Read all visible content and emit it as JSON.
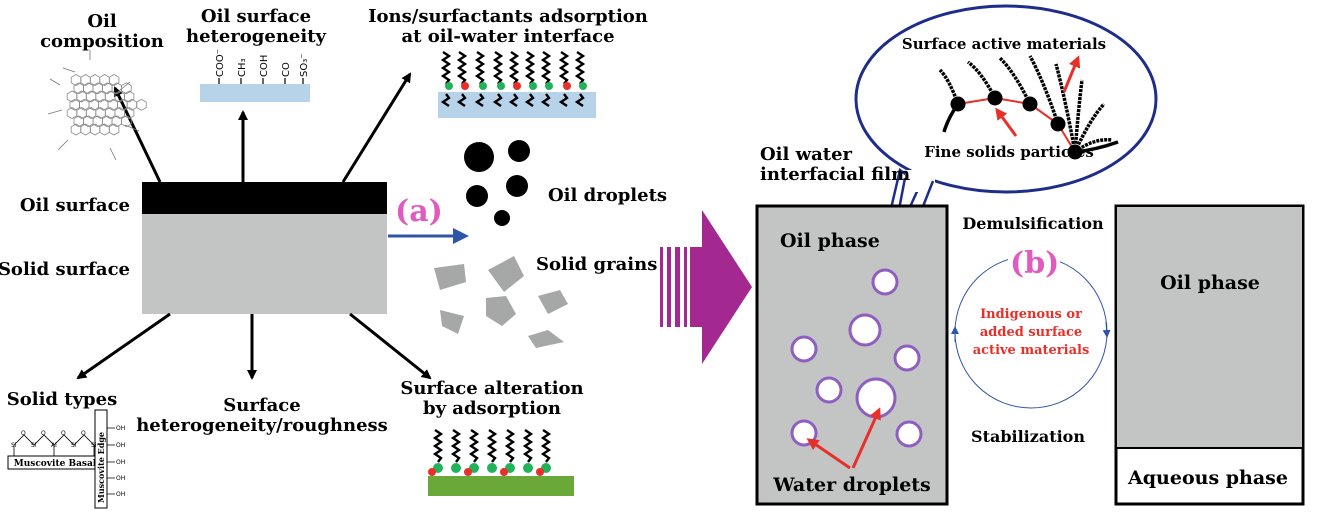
{
  "panel_a": {
    "label": "(a)",
    "oil_composition": [
      "Oil",
      "composition"
    ],
    "oil_surface_heterogeneity": [
      "Oil surface",
      "heterogeneity"
    ],
    "functional_groups": [
      "COO⁻",
      "CH₃",
      "COH",
      "CO",
      "SO₃⁻"
    ],
    "ions_adsorption": [
      "Ions/surfactants adsorption",
      "at oil-water interface"
    ],
    "oil_surface": "Oil surface",
    "solid_surface": "Solid surface",
    "oil_droplets": "Oil droplets",
    "solid_grains": "Solid grains",
    "solid_types": "Solid types",
    "surface_heterogeneity": [
      "Surface",
      "heterogeneity/roughness"
    ],
    "surface_alteration": [
      "Surface alteration",
      "by adsorption"
    ],
    "muscovite_basal": "Muscovite Basal",
    "muscovite_edge": "Muscovite Edge",
    "mineral_atoms": {
      "si": "Si",
      "al": "Al",
      "o": "O",
      "oh": "OH"
    }
  },
  "panel_b": {
    "label": "(b)",
    "surface_active_materials": "Surface active materials",
    "fine_solids_particles": "Fine solids particles",
    "oil_water_film": [
      "Oil water",
      "interfacial film"
    ],
    "oil_phase_left": "Oil phase",
    "water_droplets": "Water droplets",
    "demulsification": "Demulsification",
    "stabilization": "Stabilization",
    "cycle_text": [
      "Indigenous or",
      "added surface",
      "active materials"
    ],
    "oil_phase_right": "Oil phase",
    "aqueous_phase": "Aqueous phase"
  },
  "colors": {
    "label_magenta": "#e05bbf",
    "arrow_blue": "#2f55a8",
    "big_arrow_purple": "#a3288f",
    "grey_fill": "#c3c4c4",
    "droplet_ring": "#8e5fc0",
    "red": "#e8302a",
    "green": "#21b35a",
    "green_base": "#6aa83a",
    "water_blue": "#b6d3ea"
  }
}
